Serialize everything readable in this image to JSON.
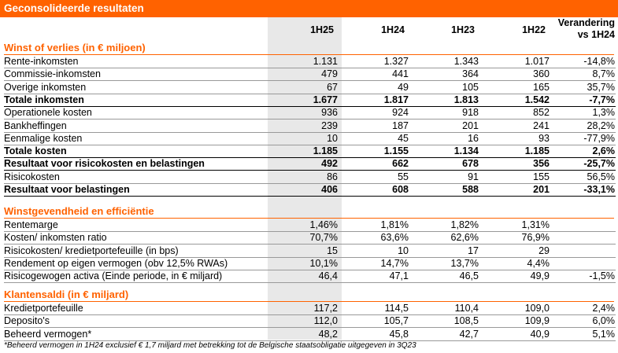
{
  "title": "Geconsolideerde resultaten",
  "accent_color": "#ff6200",
  "columns": [
    "1H25",
    "1H24",
    "1H23",
    "1H22"
  ],
  "change_header": [
    "Verandering",
    "vs 1H24"
  ],
  "sections": [
    {
      "title": "Winst of verlies (in € miljoen)",
      "rows": [
        {
          "label": "Rente-inkomsten",
          "values": [
            "1.131",
            "1.327",
            "1.343",
            "1.017",
            "-14,8%"
          ],
          "bold": false
        },
        {
          "label": "Commissie-inkomsten",
          "values": [
            "479",
            "441",
            "364",
            "360",
            "8,7%"
          ],
          "bold": false
        },
        {
          "label": "Overige inkomsten",
          "values": [
            "67",
            "49",
            "105",
            "165",
            "35,7%"
          ],
          "bold": false
        },
        {
          "label": "Totale inkomsten",
          "values": [
            "1.677",
            "1.817",
            "1.813",
            "1.542",
            "-7,7%"
          ],
          "bold": true
        },
        {
          "label": "Operationele kosten",
          "values": [
            "936",
            "924",
            "918",
            "852",
            "1,3%"
          ],
          "bold": false
        },
        {
          "label": "Bankheffingen",
          "values": [
            "239",
            "187",
            "201",
            "241",
            "28,2%"
          ],
          "bold": false
        },
        {
          "label": "Eenmalige kosten",
          "values": [
            "10",
            "45",
            "16",
            "93",
            "-77,9%"
          ],
          "bold": false
        },
        {
          "label": "Totale kosten",
          "values": [
            "1.185",
            "1.155",
            "1.134",
            "1.185",
            "2,6%"
          ],
          "bold": true
        },
        {
          "label": "Resultaat voor risicokosten en belastingen",
          "values": [
            "492",
            "662",
            "678",
            "356",
            "-25,7%"
          ],
          "bold": true
        },
        {
          "label": "Risicokosten",
          "values": [
            "86",
            "55",
            "91",
            "155",
            "56,5%"
          ],
          "bold": false
        },
        {
          "label": "Resultaat voor belastingen",
          "values": [
            "406",
            "608",
            "588",
            "201",
            "-33,1%"
          ],
          "bold": true
        }
      ]
    },
    {
      "title": "Winstgevendheid en efficiëntie",
      "rows": [
        {
          "label": "Rentemarge",
          "values": [
            "1,46%",
            "1,81%",
            "1,82%",
            "1,31%",
            ""
          ],
          "bold": false
        },
        {
          "label": "Kosten/ inkomsten ratio",
          "values": [
            "70,7%",
            "63,6%",
            "62,6%",
            "76,9%",
            ""
          ],
          "bold": false
        },
        {
          "label": "Risicokosten/ kredietportefeuille (in bps)",
          "values": [
            "15",
            "10",
            "17",
            "29",
            ""
          ],
          "bold": false
        },
        {
          "label": "Rendement op eigen vermogen (obv 12,5% RWAs)",
          "values": [
            "10,1%",
            "14,7%",
            "13,7%",
            "4,4%",
            ""
          ],
          "bold": false
        },
        {
          "label": "Risicogewogen activa (Einde periode, in € miljard)",
          "values": [
            "46,4",
            "47,1",
            "46,5",
            "49,9",
            "-1,5%"
          ],
          "bold": false
        }
      ]
    },
    {
      "title": "Klantensaldi (in € miljard)",
      "rows": [
        {
          "label": "Kredietportefeuille",
          "values": [
            "117,2",
            "114,5",
            "110,4",
            "109,0",
            "2,4%"
          ],
          "bold": false
        },
        {
          "label": "Deposito's",
          "values": [
            "112,0",
            "105,7",
            "108,5",
            "109,9",
            "6,0%"
          ],
          "bold": false
        },
        {
          "label": "Beheerd vermogen*",
          "values": [
            "48,2",
            "45,8",
            "42,7",
            "40,9",
            "5,1%"
          ],
          "bold": false
        }
      ]
    }
  ],
  "footnote": "*Beheerd vermogen in 1H24 exclusief € 1,7 miljard met betrekking tot de Belgische staatsobligatie uitgegeven in 3Q23"
}
